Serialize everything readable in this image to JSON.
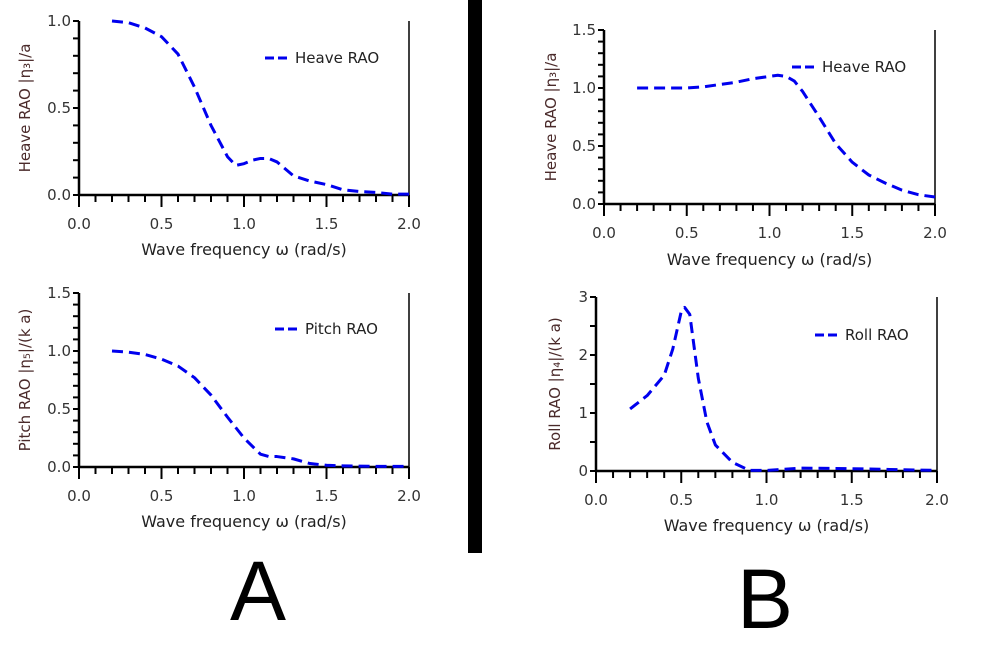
{
  "panels": {
    "left": "A",
    "right": "B"
  },
  "chart_data": [
    {
      "type": "line",
      "panel": "A",
      "xlabel": "Wave frequency ω (rad/s)",
      "ylabel": "Heave RAO |η₃|/a",
      "xlim": [
        0,
        2.0
      ],
      "ylim": [
        0,
        1.0
      ],
      "xticks": [
        "0.0",
        "0.5",
        "1.0",
        "1.5",
        "2.0"
      ],
      "yticks": [
        "0.0",
        "0.5",
        "1.0"
      ],
      "xtick_values": [
        0,
        0.5,
        1,
        1.5,
        2
      ],
      "ytick_values": [
        0,
        0.5,
        1.0
      ],
      "legend": "top-right",
      "series": [
        {
          "name": "Heave RAO",
          "color": "#0000ee",
          "x": [
            0.2,
            0.3,
            0.4,
            0.5,
            0.6,
            0.7,
            0.8,
            0.9,
            0.95,
            1.0,
            1.05,
            1.1,
            1.15,
            1.2,
            1.3,
            1.4,
            1.5,
            1.6,
            1.7,
            1.8,
            1.9,
            2.0
          ],
          "y": [
            1.0,
            0.99,
            0.96,
            0.91,
            0.81,
            0.62,
            0.4,
            0.22,
            0.17,
            0.18,
            0.2,
            0.21,
            0.21,
            0.19,
            0.11,
            0.08,
            0.06,
            0.03,
            0.02,
            0.015,
            0.005,
            0.005
          ]
        }
      ]
    },
    {
      "type": "line",
      "panel": "A",
      "xlabel": "Wave frequency ω (rad/s)",
      "ylabel": "Pitch RAO |η₅|/(k a)",
      "xlim": [
        0,
        2.0
      ],
      "ylim": [
        0,
        1.5
      ],
      "xticks": [
        "0.0",
        "0.5",
        "1.0",
        "1.5",
        "2.0"
      ],
      "yticks": [
        "0.0",
        "0.5",
        "1.0",
        "1.5"
      ],
      "xtick_values": [
        0,
        0.5,
        1,
        1.5,
        2
      ],
      "ytick_values": [
        0,
        0.5,
        1.0,
        1.5
      ],
      "legend": "top-right",
      "series": [
        {
          "name": "Pitch RAO",
          "color": "#0000ee",
          "x": [
            0.2,
            0.3,
            0.4,
            0.5,
            0.6,
            0.7,
            0.8,
            0.9,
            1.0,
            1.1,
            1.15,
            1.2,
            1.3,
            1.4,
            1.5,
            1.6,
            1.8,
            2.0
          ],
          "y": [
            1.0,
            0.99,
            0.97,
            0.93,
            0.87,
            0.77,
            0.62,
            0.43,
            0.25,
            0.11,
            0.09,
            0.09,
            0.07,
            0.03,
            0.015,
            0.01,
            0.005,
            0.005
          ]
        }
      ]
    },
    {
      "type": "line",
      "panel": "B",
      "xlabel": "Wave frequency ω (rad/s)",
      "ylabel": "Heave RAO |η₃|/a",
      "xlim": [
        0,
        2.0
      ],
      "ylim": [
        0,
        1.5
      ],
      "xticks": [
        "0.0",
        "0.5",
        "1.0",
        "1.5",
        "2.0"
      ],
      "yticks": [
        "0.0",
        "0.5",
        "1.0",
        "1.5"
      ],
      "xtick_values": [
        0,
        0.5,
        1,
        1.5,
        2
      ],
      "ytick_values": [
        0,
        0.5,
        1.0,
        1.5
      ],
      "legend": "top-right",
      "series": [
        {
          "name": "Heave RAO",
          "color": "#0000ee",
          "x": [
            0.2,
            0.4,
            0.5,
            0.6,
            0.7,
            0.8,
            0.9,
            1.0,
            1.05,
            1.1,
            1.15,
            1.2,
            1.3,
            1.4,
            1.5,
            1.6,
            1.7,
            1.8,
            1.9,
            2.0
          ],
          "y": [
            1.0,
            1.0,
            1.0,
            1.01,
            1.03,
            1.05,
            1.08,
            1.1,
            1.11,
            1.1,
            1.06,
            0.97,
            0.75,
            0.52,
            0.36,
            0.25,
            0.18,
            0.12,
            0.08,
            0.06
          ]
        }
      ]
    },
    {
      "type": "line",
      "panel": "B",
      "xlabel": "Wave frequency ω (rad/s)",
      "ylabel": "Roll RAO |η₄|/(k a)",
      "xlim": [
        0,
        2.0
      ],
      "ylim": [
        0,
        3
      ],
      "xticks": [
        "0.0",
        "0.5",
        "1.0",
        "1.5",
        "2.0"
      ],
      "yticks": [
        "0",
        "1",
        "2",
        "3"
      ],
      "xtick_values": [
        0,
        0.5,
        1,
        1.5,
        2
      ],
      "ytick_values": [
        0,
        1,
        2,
        3
      ],
      "legend": "top-right",
      "series": [
        {
          "name": "Roll RAO",
          "color": "#0000ee",
          "x": [
            0.2,
            0.3,
            0.4,
            0.45,
            0.5,
            0.52,
            0.55,
            0.6,
            0.65,
            0.7,
            0.8,
            0.9,
            1.0,
            1.2,
            1.5,
            2.0
          ],
          "y": [
            1.07,
            1.3,
            1.65,
            2.1,
            2.75,
            2.82,
            2.7,
            1.6,
            0.85,
            0.45,
            0.15,
            0.01,
            0.01,
            0.05,
            0.04,
            0.01
          ]
        }
      ]
    }
  ]
}
